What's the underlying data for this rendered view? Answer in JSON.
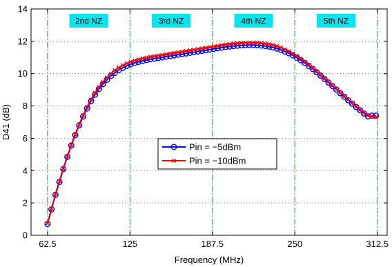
{
  "chart_data": {
    "type": "line",
    "xlabel": "Frequency (MHz)",
    "ylabel": "D41 (dB)",
    "xlim": [
      50,
      320
    ],
    "ylim": [
      0,
      14
    ],
    "xticks": [
      62.5,
      125,
      187.5,
      250,
      312.5
    ],
    "xtick_labels": [
      "62.5",
      "125",
      "187.5",
      "250",
      "312.5"
    ],
    "yticks": [
      0,
      2,
      4,
      6,
      8,
      10,
      12,
      14
    ],
    "ytick_labels": [
      "0",
      "2",
      "4",
      "6",
      "8",
      "10",
      "12",
      "14"
    ],
    "grid": true,
    "zone_boundaries": [
      62.5,
      125,
      187.5,
      250,
      312.5
    ],
    "zone_labels": [
      {
        "text": "2nd NZ",
        "x": 93.75
      },
      {
        "text": "3rd NZ",
        "x": 156.25
      },
      {
        "text": "4th NZ",
        "x": 218.75
      },
      {
        "text": "5th NZ",
        "x": 281.25
      }
    ],
    "legend_position": "center",
    "series": [
      {
        "name": "Pin = −5dBm",
        "color": "#0000ff",
        "marker": "circle",
        "x": [
          62.5,
          65.5,
          68.5,
          71.5,
          74.5,
          77.5,
          80.5,
          83.5,
          86.5,
          89.5,
          92.5,
          95.5,
          98.5,
          101.5,
          104.5,
          107.5,
          110.5,
          113.5,
          116.5,
          119.5,
          122.5,
          125.5,
          128.5,
          131.5,
          134.5,
          137.5,
          140.5,
          143.5,
          146.5,
          149.5,
          152.5,
          155.5,
          158.5,
          161.5,
          164.5,
          167.5,
          170.5,
          173.5,
          176.5,
          179.5,
          182.5,
          185.5,
          188.5,
          191.5,
          194.5,
          197.5,
          200.5,
          203.5,
          206.5,
          209.5,
          212.5,
          215.5,
          218.5,
          221.5,
          224.5,
          227.5,
          230.5,
          233.5,
          236.5,
          239.5,
          242.5,
          245.5,
          248.5,
          251.5,
          254.5,
          257.5,
          260.5,
          263.5,
          266.5,
          269.5,
          272.5,
          275.5,
          278.5,
          281.5,
          284.5,
          287.5,
          290.5,
          293.5,
          296.5,
          299.5,
          302.5,
          305.5,
          308.5,
          311.5
        ],
        "y": [
          0.7,
          1.6,
          2.5,
          3.3,
          4.1,
          4.85,
          5.55,
          6.2,
          6.8,
          7.35,
          7.85,
          8.3,
          8.7,
          9.05,
          9.35,
          9.62,
          9.85,
          10.05,
          10.22,
          10.36,
          10.48,
          10.58,
          10.66,
          10.73,
          10.79,
          10.84,
          10.89,
          10.93,
          10.97,
          11.01,
          11.05,
          11.09,
          11.13,
          11.17,
          11.21,
          11.25,
          11.29,
          11.33,
          11.37,
          11.41,
          11.45,
          11.49,
          11.53,
          11.57,
          11.61,
          11.65,
          11.68,
          11.71,
          11.73,
          11.75,
          11.76,
          11.77,
          11.77,
          11.76,
          11.74,
          11.71,
          11.67,
          11.62,
          11.55,
          11.47,
          11.37,
          11.26,
          11.13,
          10.99,
          10.83,
          10.66,
          10.48,
          10.29,
          10.09,
          9.88,
          9.67,
          9.45,
          9.23,
          9.01,
          8.79,
          8.57,
          8.35,
          8.14,
          7.93,
          7.73,
          7.53,
          7.35,
          7.4,
          7.4
        ]
      },
      {
        "name": "Pin = −10dBm",
        "color": "#ff0000",
        "marker": "x",
        "x": [
          62.5,
          65.5,
          68.5,
          71.5,
          74.5,
          77.5,
          80.5,
          83.5,
          86.5,
          89.5,
          92.5,
          95.5,
          98.5,
          101.5,
          104.5,
          107.5,
          110.5,
          113.5,
          116.5,
          119.5,
          122.5,
          125.5,
          128.5,
          131.5,
          134.5,
          137.5,
          140.5,
          143.5,
          146.5,
          149.5,
          152.5,
          155.5,
          158.5,
          161.5,
          164.5,
          167.5,
          170.5,
          173.5,
          176.5,
          179.5,
          182.5,
          185.5,
          188.5,
          191.5,
          194.5,
          197.5,
          200.5,
          203.5,
          206.5,
          209.5,
          212.5,
          215.5,
          218.5,
          221.5,
          224.5,
          227.5,
          230.5,
          233.5,
          236.5,
          239.5,
          242.5,
          245.5,
          248.5,
          251.5,
          254.5,
          257.5,
          260.5,
          263.5,
          266.5,
          269.5,
          272.5,
          275.5,
          278.5,
          281.5,
          284.5,
          287.5,
          290.5,
          293.5,
          296.5,
          299.5,
          302.5,
          305.5,
          308.5,
          311.5
        ],
        "y": [
          0.75,
          1.65,
          2.55,
          3.35,
          4.15,
          4.9,
          5.6,
          6.25,
          6.85,
          7.42,
          7.94,
          8.4,
          8.81,
          9.17,
          9.48,
          9.76,
          10.0,
          10.2,
          10.37,
          10.51,
          10.63,
          10.73,
          10.81,
          10.88,
          10.94,
          10.99,
          11.04,
          11.08,
          11.12,
          11.16,
          11.2,
          11.24,
          11.28,
          11.32,
          11.36,
          11.4,
          11.44,
          11.48,
          11.52,
          11.56,
          11.6,
          11.64,
          11.68,
          11.72,
          11.76,
          11.8,
          11.83,
          11.86,
          11.88,
          11.9,
          11.91,
          11.92,
          11.92,
          11.91,
          11.89,
          11.86,
          11.82,
          11.77,
          11.7,
          11.61,
          11.5,
          11.38,
          11.24,
          11.09,
          10.92,
          10.74,
          10.55,
          10.35,
          10.14,
          9.93,
          9.71,
          9.49,
          9.27,
          9.05,
          8.83,
          8.61,
          8.39,
          8.18,
          7.97,
          7.77,
          7.58,
          7.42,
          7.35,
          7.32
        ]
      }
    ]
  }
}
